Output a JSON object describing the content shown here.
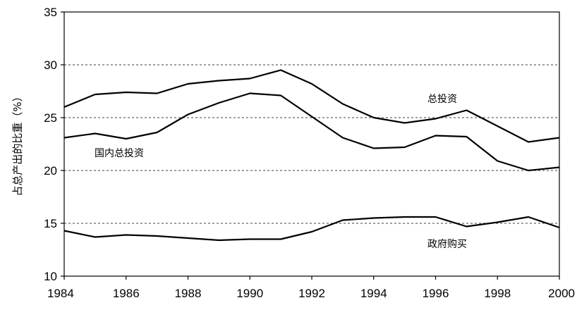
{
  "chart_data": {
    "type": "line",
    "ylabel": "占总产出的比重（%）",
    "xlim": [
      1984,
      2000
    ],
    "ylim": [
      10,
      35
    ],
    "x_ticks": [
      1984,
      1986,
      1988,
      1990,
      1992,
      1994,
      1996,
      1998,
      2000
    ],
    "y_ticks": [
      10,
      15,
      20,
      25,
      30,
      35
    ],
    "gridlines_y": [
      15,
      20,
      25,
      30
    ],
    "grid": "dashed horizontal",
    "legend": "none",
    "x": [
      1984,
      1985,
      1986,
      1987,
      1988,
      1989,
      1990,
      1991,
      1992,
      1993,
      1994,
      1995,
      1996,
      1997,
      1998,
      1999,
      2000
    ],
    "series": [
      {
        "name": "总投资",
        "color": "#000000",
        "values": [
          26.0,
          27.2,
          27.4,
          27.3,
          28.2,
          28.5,
          28.7,
          29.5,
          28.2,
          26.3,
          25.0,
          24.5,
          24.9,
          25.7,
          24.2,
          22.7,
          23.1
        ]
      },
      {
        "name": "国内总投资",
        "color": "#000000",
        "values": [
          23.1,
          23.5,
          23.0,
          23.6,
          25.3,
          26.4,
          27.3,
          27.1,
          25.1,
          23.1,
          22.1,
          22.2,
          23.3,
          23.2,
          20.9,
          20.0,
          20.3
        ]
      },
      {
        "name": "政府购买",
        "color": "#000000",
        "values": [
          14.3,
          13.7,
          13.9,
          13.8,
          13.6,
          13.4,
          13.5,
          13.5,
          14.2,
          15.3,
          15.5,
          15.6,
          15.6,
          14.7,
          15.1,
          15.6,
          14.6
        ]
      }
    ]
  }
}
